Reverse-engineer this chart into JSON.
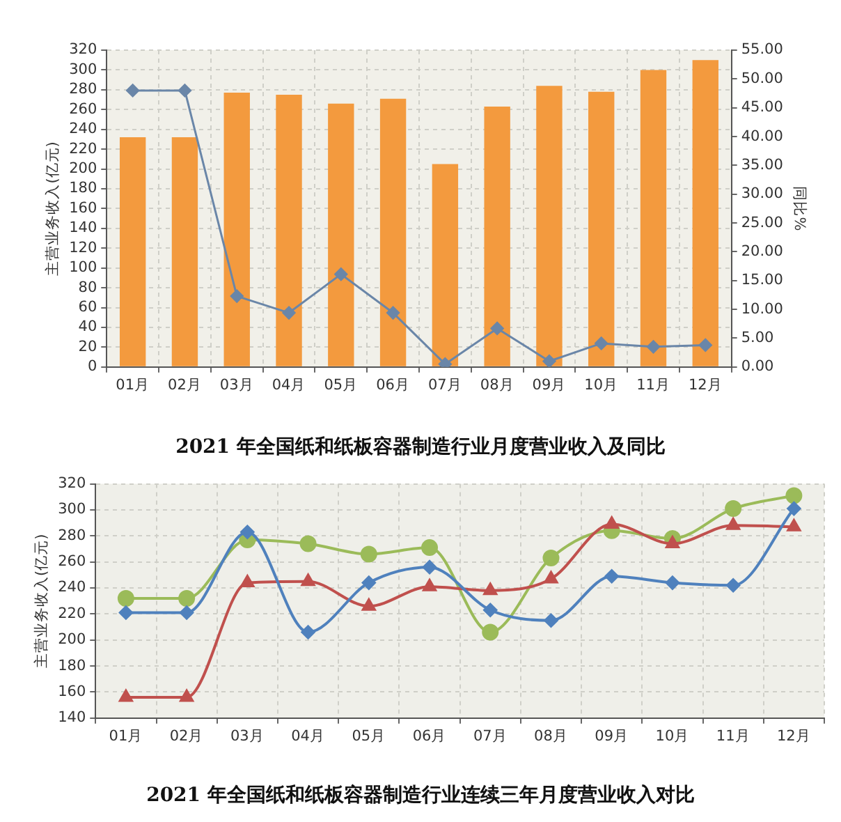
{
  "chart_data": [
    {
      "type": "bar",
      "title": "2021 年全国纸和纸板容器制造行业月度营业收入及同比",
      "ylabel": "主营业务收入(亿元)",
      "y2label": "同比%",
      "categories": [
        "01月",
        "02月",
        "03月",
        "04月",
        "05月",
        "06月",
        "07月",
        "08月",
        "09月",
        "10月",
        "11月",
        "12月"
      ],
      "series": [
        {
          "type": "bar",
          "color": "#f39a3e",
          "values": [
            232,
            232,
            277,
            275,
            266,
            271,
            205,
            263,
            284,
            278,
            300,
            310
          ]
        },
        {
          "type": "line",
          "axis": "y2",
          "color": "#6a86a8",
          "marker": "diamond",
          "values": [
            48,
            48,
            12.3,
            9.4,
            16.1,
            9.4,
            0.5,
            6.7,
            1.0,
            4.1,
            3.5,
            3.8
          ]
        }
      ],
      "ylim": [
        0,
        320
      ],
      "yticks": [
        0,
        20,
        40,
        60,
        80,
        100,
        120,
        140,
        160,
        180,
        200,
        220,
        240,
        260,
        280,
        300,
        320
      ],
      "y2lim": [
        0,
        55
      ],
      "y2ticks": [
        {
          "value": 0,
          "label": "0.00"
        },
        {
          "value": 5,
          "label": "5.00"
        },
        {
          "value": 10,
          "label": "10.00"
        },
        {
          "value": 15,
          "label": "15.00"
        },
        {
          "value": 20,
          "label": "20.00"
        },
        {
          "value": 25,
          "label": "25.00"
        },
        {
          "value": 30,
          "label": "30.00"
        },
        {
          "value": 35,
          "label": "35.00"
        },
        {
          "value": 40,
          "label": "40.00"
        },
        {
          "value": 45,
          "label": "45.00"
        },
        {
          "value": 50,
          "label": "50.00"
        },
        {
          "value": 55,
          "label": "55.00"
        }
      ],
      "grid": true
    },
    {
      "type": "line",
      "title": "2021 年全国纸和纸板容器制造行业连续三年月度营业收入对比",
      "ylabel": "主营业务收入(亿元)",
      "categories": [
        "01月",
        "02月",
        "03月",
        "04月",
        "05月",
        "06月",
        "07月",
        "08月",
        "09月",
        "10月",
        "11月",
        "12月"
      ],
      "series": [
        {
          "color": "#4f81bd",
          "marker": "diamond",
          "values": [
            221,
            221,
            283,
            206,
            244,
            256,
            223,
            215,
            249,
            244,
            242,
            301
          ]
        },
        {
          "color": "#c0504d",
          "marker": "triangle",
          "values": [
            156,
            156,
            244,
            245,
            226,
            241,
            238,
            247,
            289,
            274,
            288,
            287
          ]
        },
        {
          "color": "#9bbb59",
          "marker": "circle",
          "values": [
            232,
            232,
            277,
            274,
            266,
            271,
            206,
            263,
            284,
            278,
            301,
            311
          ]
        }
      ],
      "ylim": [
        140,
        320
      ],
      "yticks": [
        140,
        160,
        180,
        200,
        220,
        240,
        260,
        280,
        300,
        320
      ],
      "grid": true
    }
  ]
}
